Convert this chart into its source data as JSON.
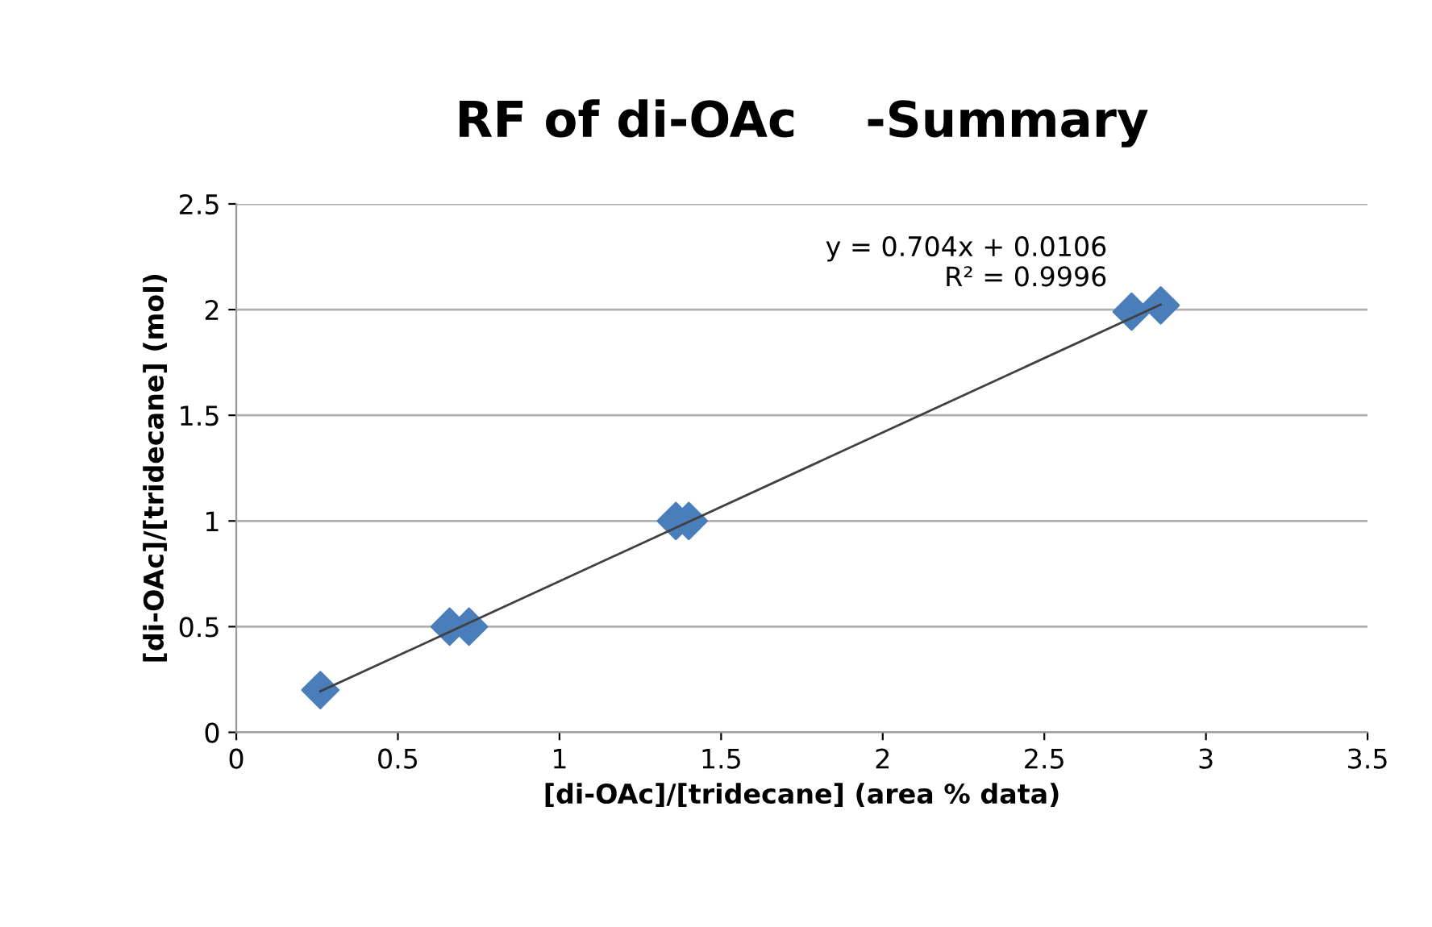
{
  "chart_data": {
    "type": "scatter",
    "title": "RF of di-OAc    -Summary",
    "xlabel": "[di-OAc]/[tridecane] (area % data)",
    "ylabel": "[di-OAc]/[tridecane] (mol)",
    "series": [
      {
        "color": "#4a7ebb",
        "marker": "diamond",
        "x": [
          0.26,
          0.66,
          0.72,
          1.36,
          1.4,
          2.77,
          2.86
        ],
        "values": [
          0.2,
          0.5,
          0.5,
          1.0,
          1.0,
          1.99,
          2.02
        ]
      },
      {
        "type": "line",
        "color": "#404040",
        "x": [
          0.26,
          2.86
        ],
        "values": [
          0.194,
          2.024
        ]
      }
    ],
    "annotations": [
      "y = 0.704x + 0.0106\nR² = 0.9996"
    ],
    "xlim": [
      0,
      3.5
    ],
    "xticks": [
      0,
      0.5,
      1,
      1.5,
      2,
      2.5,
      3,
      3.5
    ],
    "ylim": [
      0,
      2.5
    ],
    "yticks": [
      0,
      0.5,
      1,
      1.5,
      2,
      2.5
    ],
    "grid": "y",
    "legend": false
  }
}
